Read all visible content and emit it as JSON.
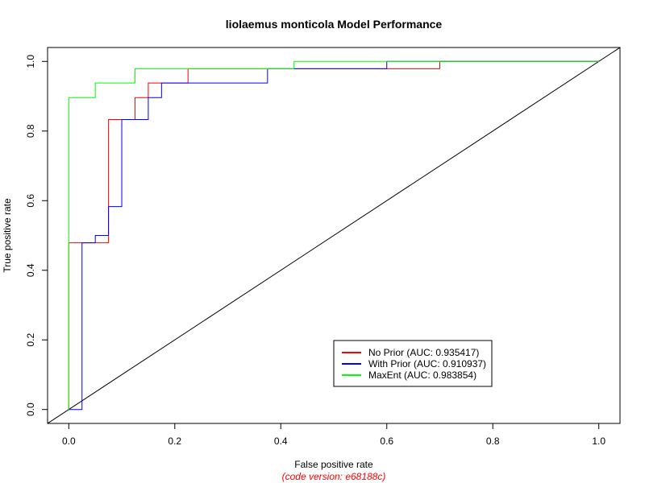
{
  "chart_data": {
    "type": "line",
    "title": "liolaemus monticola Model Performance",
    "xlabel": "False positive rate",
    "ylabel": "True positive rate",
    "subtitle": "(code version: e68188c)",
    "xlim": [
      -0.04,
      1.04
    ],
    "ylim": [
      -0.04,
      1.04
    ],
    "xticks": [
      "0.0",
      "0.2",
      "0.4",
      "0.6",
      "0.8",
      "1.0"
    ],
    "yticks": [
      "0.0",
      "0.2",
      "0.4",
      "0.6",
      "0.8",
      "1.0"
    ],
    "grid": false,
    "legend_position": "bottom-right",
    "series": [
      {
        "name": "No Prior (AUC: 0.935417)",
        "color": "#ff0000",
        "x": [
          0,
          0,
          0.075,
          0.075,
          0.125,
          0.125,
          0.15,
          0.15,
          0.175,
          0.175,
          0.225,
          0.225,
          0.6,
          0.6,
          0.7,
          0.7,
          1.0
        ],
        "y": [
          0,
          0.479,
          0.479,
          0.833,
          0.833,
          0.896,
          0.896,
          0.938,
          0.938,
          0.938,
          0.938,
          0.979,
          0.979,
          0.979,
          0.979,
          1.0,
          1.0
        ]
      },
      {
        "name": "With Prior (AUC: 0.910937)",
        "color": "#0000ff",
        "x": [
          0,
          0.025,
          0.025,
          0.05,
          0.05,
          0.075,
          0.075,
          0.1,
          0.1,
          0.15,
          0.15,
          0.175,
          0.175,
          0.375,
          0.375,
          0.6,
          0.6,
          1.0
        ],
        "y": [
          0,
          0,
          0.479,
          0.479,
          0.5,
          0.5,
          0.583,
          0.583,
          0.833,
          0.833,
          0.896,
          0.896,
          0.938,
          0.938,
          0.979,
          0.979,
          1.0,
          1.0
        ]
      },
      {
        "name": "MaxEnt (AUC: 0.983854)",
        "color": "#00ff00",
        "x": [
          0,
          0,
          0.05,
          0.05,
          0.125,
          0.125,
          0.425,
          0.425,
          1.0
        ],
        "y": [
          0,
          0.896,
          0.896,
          0.938,
          0.938,
          0.979,
          0.979,
          1.0,
          1.0
        ]
      },
      {
        "color": "#000000",
        "x": [
          -0.04,
          1.04
        ],
        "y": [
          -0.04,
          1.04
        ]
      }
    ]
  }
}
